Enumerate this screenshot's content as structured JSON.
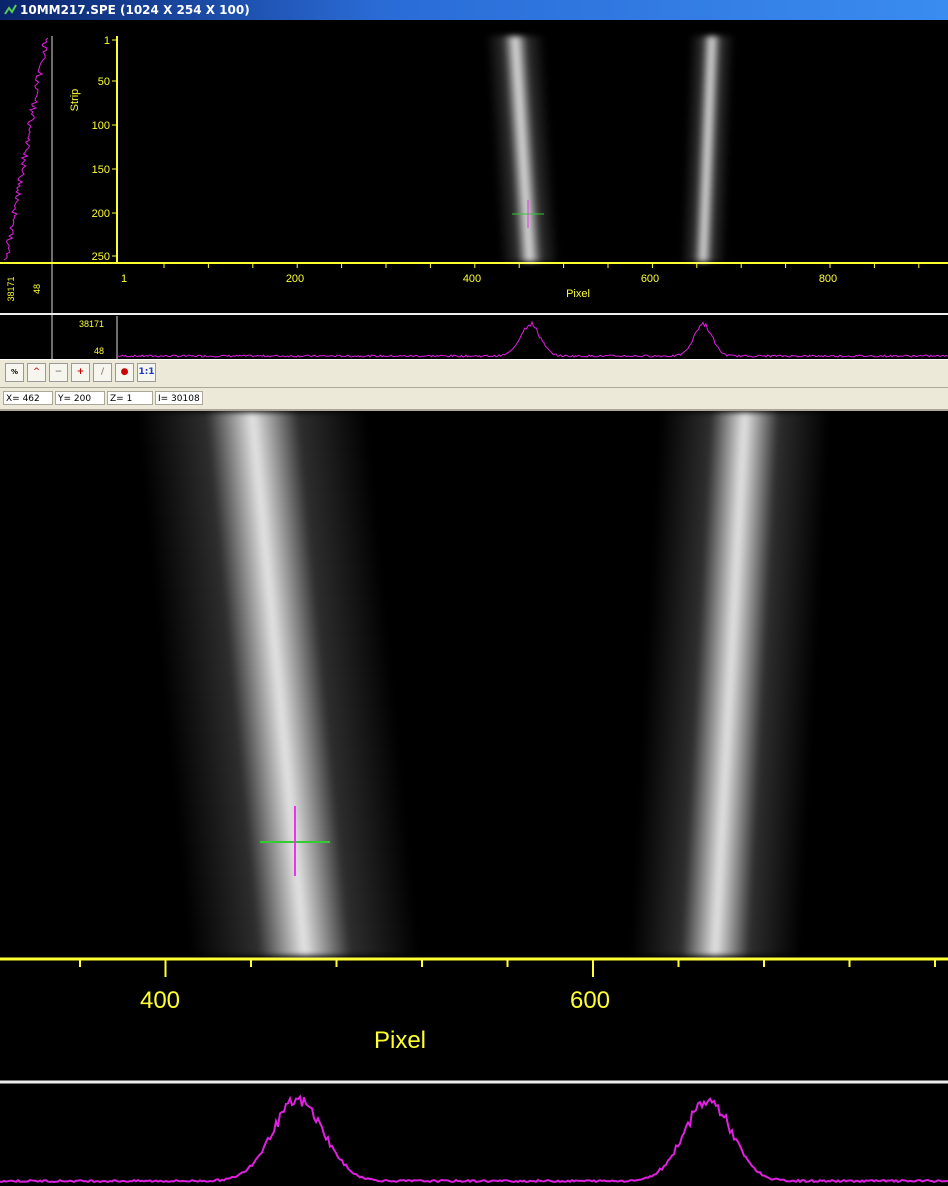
{
  "window": {
    "title": "10MM217.SPE (1024 X 254 X 100)"
  },
  "overview": {
    "y_axis_label": "Strip",
    "y_ticks": [
      "1",
      "50",
      "100",
      "150",
      "200",
      "250"
    ],
    "x_axis_label": "Pixel",
    "x_ticks": [
      "1",
      "200",
      "400",
      "600",
      "800"
    ],
    "side_intensity": [
      "38171",
      "48"
    ],
    "profile_intensity": [
      "38171",
      "48"
    ]
  },
  "toolbar": {
    "zoom_1to1": "1:1"
  },
  "status": {
    "x": "X= 462",
    "y": "Y= 200",
    "z": "Z= 1",
    "i": "I= 30108"
  },
  "zoom_view": {
    "x_ticks": [
      "400",
      "600"
    ],
    "x_axis_label": "Pixel"
  }
}
